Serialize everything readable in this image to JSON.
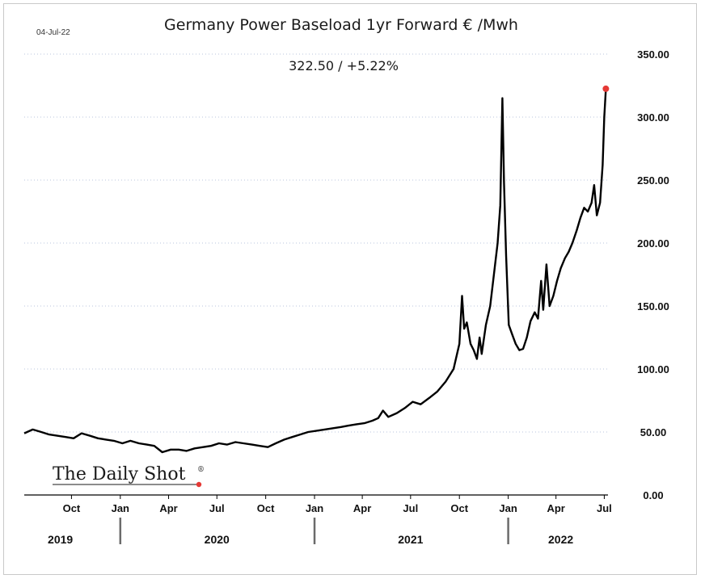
{
  "header": {
    "date_label": "04-Jul-22",
    "last_value_label": "322.50  /  +5.22%"
  },
  "branding": {
    "logo_text": "The Daily Shot",
    "logo_mark": "®",
    "accent_color": "#e53935"
  },
  "chart_data": {
    "type": "line",
    "title": "Germany Power Baseload 1yr Forward € /Mwh",
    "xlabel": "",
    "ylabel": "",
    "ylim": [
      0,
      350
    ],
    "y_axis_side": "right",
    "yticks": [
      "0.00",
      "50.00",
      "100.00",
      "150.00",
      "200.00",
      "250.00",
      "300.00",
      "350.00"
    ],
    "ytick_values": [
      0,
      50,
      100,
      150,
      200,
      250,
      300,
      350
    ],
    "xlim": [
      "2019-07-04",
      "2022-07-08"
    ],
    "xticks": [
      {
        "label": "Oct",
        "date": "2019-10-01"
      },
      {
        "label": "Jan",
        "date": "2020-01-01"
      },
      {
        "label": "Apr",
        "date": "2020-04-01"
      },
      {
        "label": "Jul",
        "date": "2020-07-01"
      },
      {
        "label": "Oct",
        "date": "2020-10-01"
      },
      {
        "label": "Jan",
        "date": "2021-01-01"
      },
      {
        "label": "Apr",
        "date": "2021-04-01"
      },
      {
        "label": "Jul",
        "date": "2021-07-01"
      },
      {
        "label": "Oct",
        "date": "2021-10-01"
      },
      {
        "label": "Jan",
        "date": "2022-01-01"
      },
      {
        "label": "Apr",
        "date": "2022-04-01"
      },
      {
        "label": "Jul",
        "date": "2022-07-01"
      }
    ],
    "year_labels": [
      {
        "label": "2019",
        "date": "2019-09-10"
      },
      {
        "label": "2020",
        "date": "2020-07-01"
      },
      {
        "label": "2021",
        "date": "2021-07-01"
      },
      {
        "label": "2022",
        "date": "2022-04-10"
      }
    ],
    "year_dividers": [
      "2020-01-01",
      "2021-01-01",
      "2022-01-01"
    ],
    "grid": {
      "horizontal": true,
      "style": "dotted"
    },
    "line_color": "#000000",
    "last_point_marker_color": "#e53935",
    "series": [
      {
        "points": [
          [
            "2019-07-04",
            49
          ],
          [
            "2019-07-20",
            52
          ],
          [
            "2019-08-05",
            50
          ],
          [
            "2019-08-20",
            48
          ],
          [
            "2019-09-05",
            47
          ],
          [
            "2019-09-20",
            46
          ],
          [
            "2019-10-05",
            45
          ],
          [
            "2019-10-20",
            49
          ],
          [
            "2019-11-05",
            47
          ],
          [
            "2019-11-20",
            45
          ],
          [
            "2019-12-05",
            44
          ],
          [
            "2019-12-20",
            43
          ],
          [
            "2020-01-05",
            41
          ],
          [
            "2020-01-20",
            43
          ],
          [
            "2020-02-05",
            41
          ],
          [
            "2020-02-20",
            40
          ],
          [
            "2020-03-05",
            39
          ],
          [
            "2020-03-20",
            34
          ],
          [
            "2020-04-05",
            36
          ],
          [
            "2020-04-20",
            36
          ],
          [
            "2020-05-05",
            35
          ],
          [
            "2020-05-20",
            37
          ],
          [
            "2020-06-05",
            38
          ],
          [
            "2020-06-20",
            39
          ],
          [
            "2020-07-05",
            41
          ],
          [
            "2020-07-20",
            40
          ],
          [
            "2020-08-05",
            42
          ],
          [
            "2020-08-20",
            41
          ],
          [
            "2020-09-05",
            40
          ],
          [
            "2020-09-20",
            39
          ],
          [
            "2020-10-05",
            38
          ],
          [
            "2020-10-20",
            41
          ],
          [
            "2020-11-05",
            44
          ],
          [
            "2020-11-20",
            46
          ],
          [
            "2020-12-05",
            48
          ],
          [
            "2020-12-20",
            50
          ],
          [
            "2021-01-05",
            51
          ],
          [
            "2021-01-20",
            52
          ],
          [
            "2021-02-05",
            53
          ],
          [
            "2021-02-20",
            54
          ],
          [
            "2021-03-05",
            55
          ],
          [
            "2021-03-20",
            56
          ],
          [
            "2021-04-05",
            57
          ],
          [
            "2021-04-20",
            59
          ],
          [
            "2021-05-01",
            61
          ],
          [
            "2021-05-10",
            67
          ],
          [
            "2021-05-20",
            62
          ],
          [
            "2021-06-05",
            65
          ],
          [
            "2021-06-20",
            69
          ],
          [
            "2021-07-05",
            74
          ],
          [
            "2021-07-20",
            72
          ],
          [
            "2021-08-05",
            77
          ],
          [
            "2021-08-20",
            82
          ],
          [
            "2021-09-05",
            90
          ],
          [
            "2021-09-20",
            100
          ],
          [
            "2021-10-01",
            120
          ],
          [
            "2021-10-06",
            158
          ],
          [
            "2021-10-10",
            132
          ],
          [
            "2021-10-15",
            137
          ],
          [
            "2021-10-22",
            120
          ],
          [
            "2021-10-28",
            115
          ],
          [
            "2021-11-03",
            108
          ],
          [
            "2021-11-08",
            125
          ],
          [
            "2021-11-12",
            112
          ],
          [
            "2021-11-20",
            135
          ],
          [
            "2021-11-28",
            150
          ],
          [
            "2021-12-05",
            175
          ],
          [
            "2021-12-12",
            200
          ],
          [
            "2021-12-17",
            230
          ],
          [
            "2021-12-21",
            315
          ],
          [
            "2021-12-24",
            248
          ],
          [
            "2021-12-28",
            190
          ],
          [
            "2022-01-02",
            135
          ],
          [
            "2022-01-08",
            128
          ],
          [
            "2022-01-15",
            120
          ],
          [
            "2022-01-22",
            115
          ],
          [
            "2022-01-29",
            116
          ],
          [
            "2022-02-05",
            125
          ],
          [
            "2022-02-12",
            138
          ],
          [
            "2022-02-20",
            145
          ],
          [
            "2022-02-26",
            140
          ],
          [
            "2022-03-04",
            170
          ],
          [
            "2022-03-08",
            147
          ],
          [
            "2022-03-14",
            183
          ],
          [
            "2022-03-20",
            150
          ],
          [
            "2022-03-27",
            158
          ],
          [
            "2022-04-03",
            170
          ],
          [
            "2022-04-10",
            180
          ],
          [
            "2022-04-18",
            188
          ],
          [
            "2022-04-25",
            193
          ],
          [
            "2022-05-02",
            200
          ],
          [
            "2022-05-10",
            210
          ],
          [
            "2022-05-17",
            220
          ],
          [
            "2022-05-24",
            228
          ],
          [
            "2022-05-31",
            225
          ],
          [
            "2022-06-07",
            232
          ],
          [
            "2022-06-12",
            246
          ],
          [
            "2022-06-17",
            222
          ],
          [
            "2022-06-23",
            232
          ],
          [
            "2022-06-28",
            262
          ],
          [
            "2022-07-01",
            300
          ],
          [
            "2022-07-04",
            322.5
          ]
        ]
      }
    ]
  }
}
